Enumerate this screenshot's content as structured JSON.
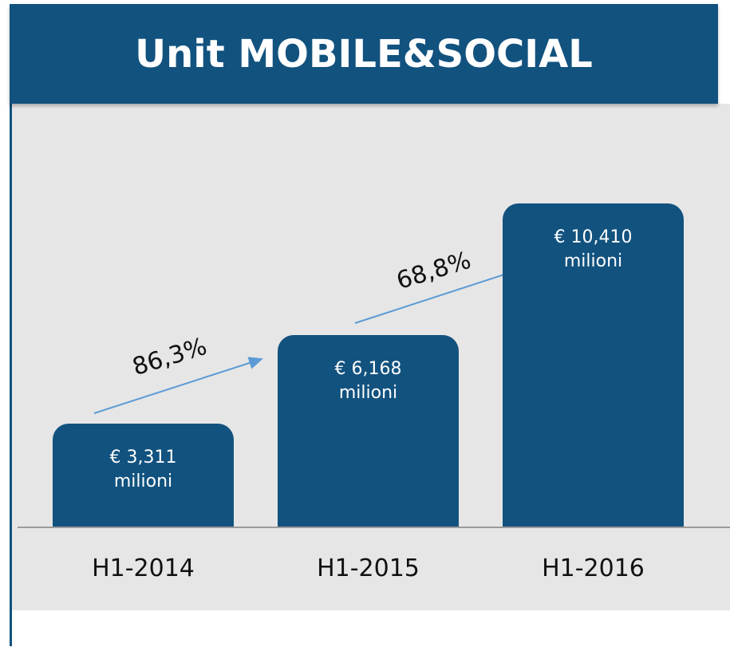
{
  "chart_data": {
    "type": "bar",
    "title": "Unit MOBILE&SOCIAL",
    "categories": [
      "H1-2014",
      "H1-2015",
      "H1-2016"
    ],
    "values": [
      3.311,
      6.168,
      10.41
    ],
    "value_labels": [
      "€ 3,311 milioni",
      "€ 6,168 milioni",
      "€ 10,410 milioni"
    ],
    "color": "#12527f",
    "annotations": [
      {
        "text": "86,3%"
      },
      {
        "text": "68,8%"
      }
    ]
  }
}
